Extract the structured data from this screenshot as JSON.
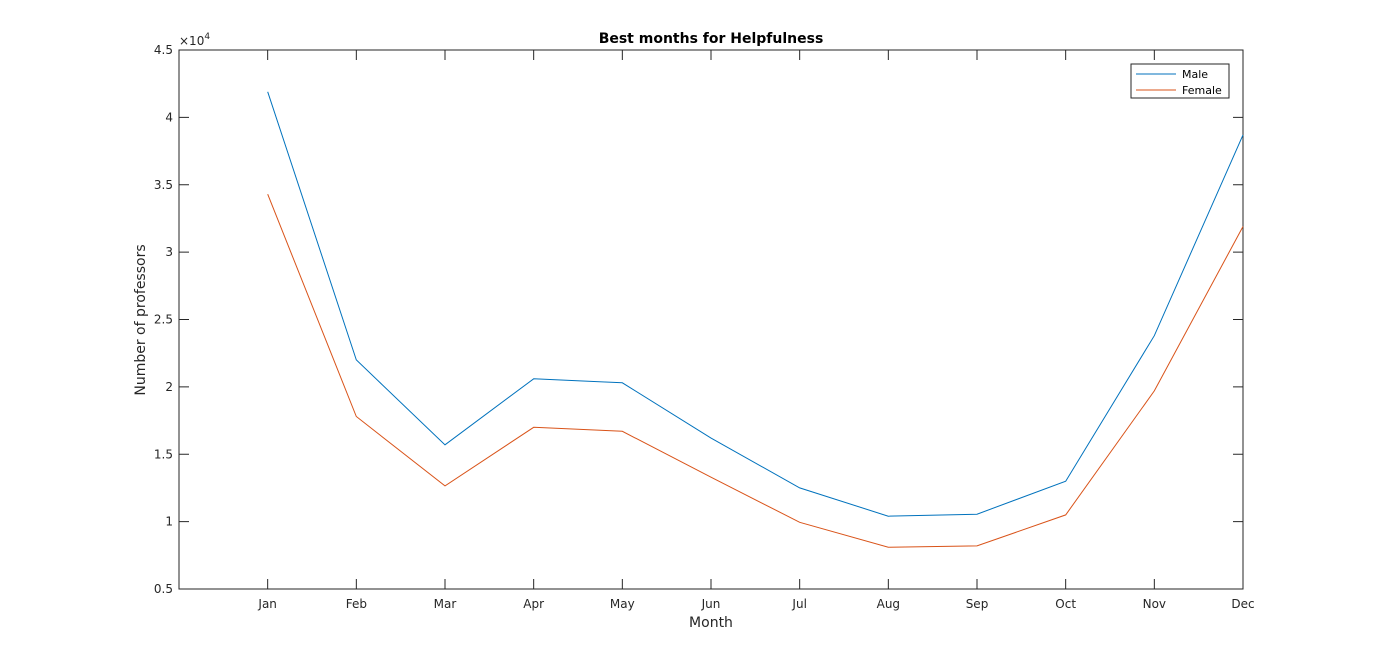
{
  "chart_data": {
    "type": "line",
    "title": "Best months for Helpfulness",
    "xlabel": "Month",
    "ylabel": "Number of professors",
    "y_exponent_label": "×10",
    "y_exponent": "4",
    "categories": [
      "Jan",
      "Feb",
      "Mar",
      "Apr",
      "May",
      "Jun",
      "Jul",
      "Aug",
      "Sep",
      "Oct",
      "Nov",
      "Dec"
    ],
    "x_range": [
      0,
      12
    ],
    "ylim": [
      5000,
      45000
    ],
    "yticks": [
      5000,
      10000,
      15000,
      20000,
      25000,
      30000,
      35000,
      40000,
      45000
    ],
    "ytick_labels": [
      "0.5",
      "1",
      "1.5",
      "2",
      "2.5",
      "3",
      "3.5",
      "4",
      "4.5"
    ],
    "grid": false,
    "legend_position": "top-right",
    "series": [
      {
        "name": "Male",
        "color": "#0072BD",
        "values": [
          41900,
          22000,
          15700,
          20600,
          20300,
          16200,
          12500,
          10400,
          10550,
          13000,
          23800,
          38700
        ]
      },
      {
        "name": "Female",
        "color": "#D95319",
        "values": [
          34300,
          17800,
          12650,
          17000,
          16700,
          13300,
          9950,
          8100,
          8200,
          10500,
          19700,
          31900
        ]
      }
    ]
  }
}
